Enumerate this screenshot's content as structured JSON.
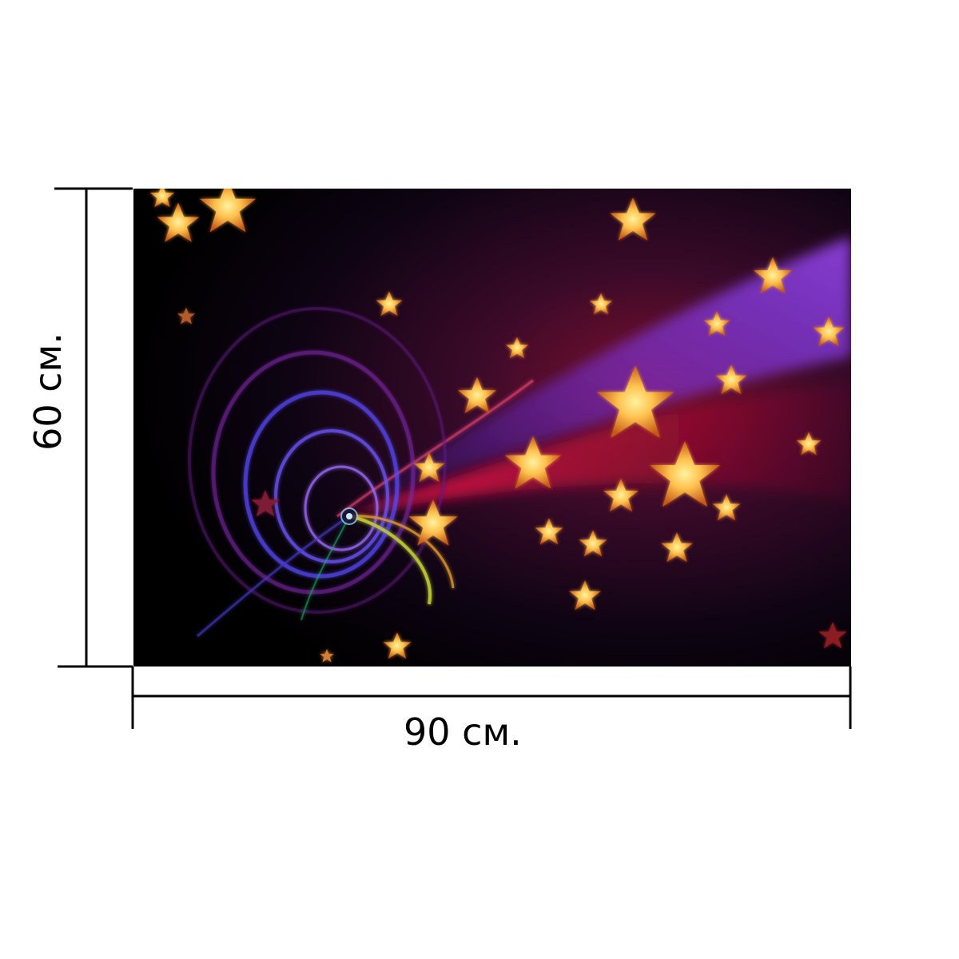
{
  "product_preview": {
    "image_description_icon": "night-star-swirl-image",
    "background_color": "#000000",
    "palette": [
      "#000000",
      "#2a0b45",
      "#5a2ad6",
      "#c2123a",
      "#f3a437",
      "#ffe082"
    ]
  },
  "dimensions": {
    "width_label": "90 см.",
    "height_label": "60 см.",
    "line_color": "#000000"
  }
}
